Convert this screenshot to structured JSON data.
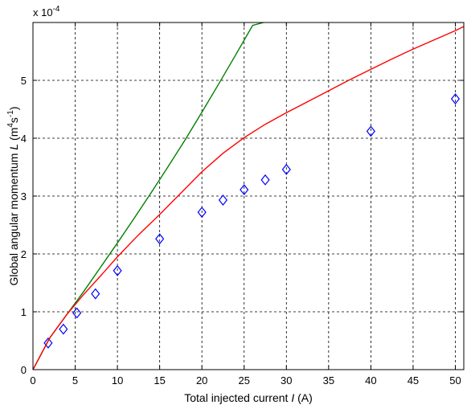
{
  "chart_data": {
    "type": "scatter",
    "xlabel_pre": "Total injected current ",
    "xlabel_var": "I",
    "xlabel_post": " (A)",
    "ylabel_pre": "Global angular momentum  ",
    "ylabel_var": "L",
    "ylabel_unit_open": " (m",
    "ylabel_sup1": "4",
    "ylabel_unit_mid": "s",
    "ylabel_sup2": "-1",
    "ylabel_unit_close": ")",
    "exponent_prefix": "x 10",
    "exponent_power": "-4",
    "xlim": [
      0,
      51
    ],
    "ylim": [
      0,
      6
    ],
    "xticks": [
      "0",
      "5",
      "10",
      "15",
      "20",
      "25",
      "30",
      "35",
      "40",
      "45",
      "50"
    ],
    "yticks": [
      "0",
      "1",
      "2",
      "3",
      "4",
      "5"
    ],
    "grid": true,
    "series": [
      {
        "kind": "scatter",
        "marker": "diamond",
        "color": "#0000ff",
        "x": [
          1.8,
          3.6,
          5.2,
          7.4,
          10.0,
          15.0,
          20.0,
          22.5,
          25.0,
          27.5,
          30.0,
          40.0,
          50.0
        ],
        "y": [
          0.46,
          0.7,
          0.98,
          1.31,
          1.71,
          2.26,
          2.72,
          2.93,
          3.11,
          3.28,
          3.46,
          4.12,
          4.68
        ]
      },
      {
        "kind": "line",
        "color": "#008000",
        "x": [
          0,
          2,
          4,
          6,
          8,
          10,
          12,
          14,
          16,
          18,
          20,
          22,
          24,
          26,
          27.3
        ],
        "y": [
          0,
          0.55,
          0.95,
          1.35,
          1.77,
          2.19,
          2.62,
          3.06,
          3.51,
          3.97,
          4.45,
          4.94,
          5.44,
          5.95,
          6.0
        ]
      },
      {
        "kind": "line",
        "color": "#ff0000",
        "x": [
          0,
          2,
          4,
          6,
          8,
          10,
          12.5,
          15,
          17.5,
          20,
          22.5,
          25,
          27.5,
          30,
          32.5,
          35,
          37.5,
          40,
          42.5,
          45,
          47.5,
          50,
          51
        ],
        "y": [
          0,
          0.55,
          0.95,
          1.3,
          1.62,
          1.95,
          2.33,
          2.68,
          3.05,
          3.42,
          3.74,
          4.01,
          4.24,
          4.44,
          4.63,
          4.82,
          5.01,
          5.19,
          5.37,
          5.54,
          5.7,
          5.86,
          5.93
        ]
      }
    ]
  }
}
